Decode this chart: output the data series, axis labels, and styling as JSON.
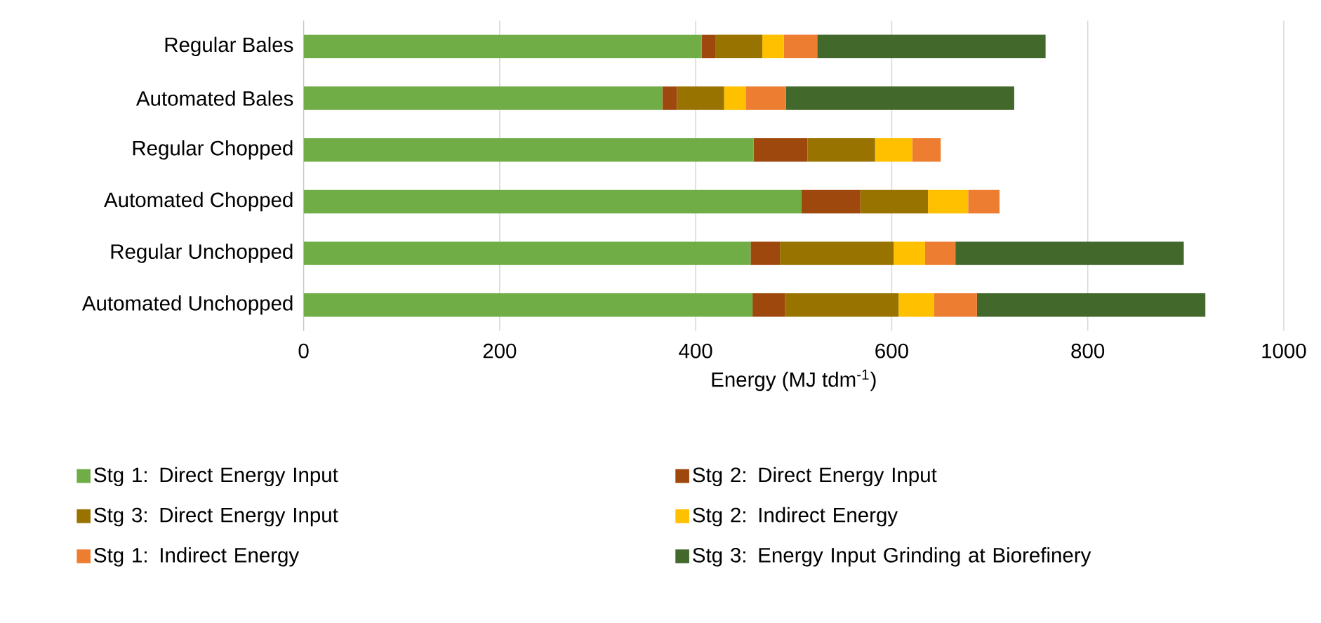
{
  "chart_data": {
    "type": "bar",
    "orientation": "horizontal",
    "stacked": true,
    "categories": [
      "Regular Bales",
      "Automated Bales",
      "Regular Chopped",
      "Automated Chopped",
      "Regular Unchopped",
      "Automated Unchopped"
    ],
    "xlabel": "Energy (MJ tdm$^{-1}$)",
    "xlim": [
      0,
      1000
    ],
    "xticks": [
      0,
      200,
      400,
      600,
      800,
      1000
    ],
    "grid": "x",
    "legend": "bottom",
    "series": [
      {
        "name": "Stg 1:  Direct Energy Input",
        "color": "#70ad47",
        "values": [
          406,
          366,
          459,
          508,
          456,
          458
        ]
      },
      {
        "name": "Stg 2: Direct Energy Input",
        "color": "#9e480e",
        "values": [
          14,
          15,
          55,
          60,
          30,
          33
        ]
      },
      {
        "name": "Stg 3: Direct Energy Input",
        "color": "#997300",
        "values": [
          48,
          48,
          69,
          69,
          116,
          116
        ]
      },
      {
        "name": "Stg 2: Indirect Energy",
        "color": "#ffc000",
        "values": [
          22,
          22,
          38,
          41,
          32,
          36
        ]
      },
      {
        "name": "Stg 1: Indirect Energy",
        "color": "#ed7d31",
        "values": [
          34,
          41,
          29,
          32,
          31,
          44
        ]
      },
      {
        "name": "Stg 3: Energy Input Grinding at Biorefinery",
        "color": "#43682b",
        "values": [
          233,
          233,
          0,
          0,
          233,
          233
        ]
      }
    ]
  }
}
